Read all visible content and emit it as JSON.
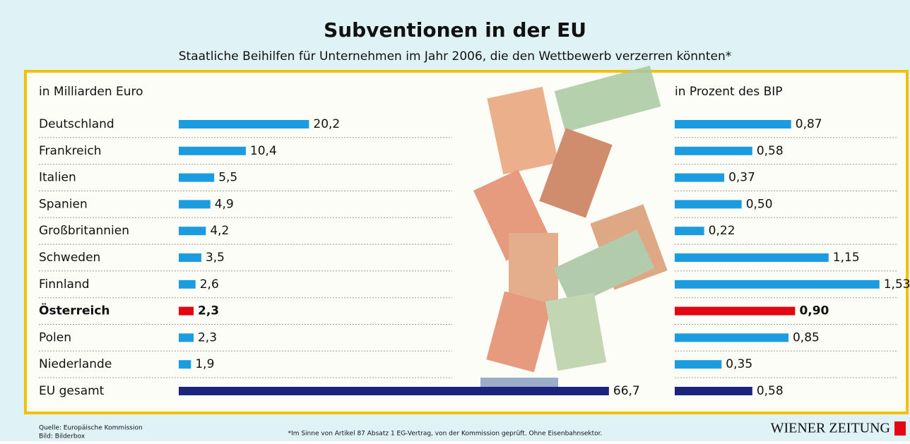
{
  "title": "Subventionen in der EU",
  "subtitle": "Staatliche Beihilfen für Unternehmen im Jahr 2006, die den Wettbewerb verzerren könnten*",
  "source": "Quelle: Europäische Kommission",
  "credit": "Bild: Bilderbox",
  "footnote": "*Im Sinne von Artikel 87 Absatz 1 EG-Vertrag, von der Kommission geprüft. Ohne Eisenbahnsektor.",
  "brand": "WIENER ZEITUNG",
  "chart_data": [
    {
      "type": "bar",
      "orientation": "horizontal",
      "title": "in Milliarden Euro",
      "categories": [
        "Deutschland",
        "Frankreich",
        "Italien",
        "Spanien",
        "Großbritannien",
        "Schweden",
        "Finnland",
        "Österreich",
        "Polen",
        "Niederlande",
        "EU gesamt"
      ],
      "values": [
        20.2,
        10.4,
        5.5,
        4.9,
        4.2,
        3.5,
        2.6,
        2.3,
        2.3,
        1.9,
        66.7
      ],
      "value_labels": [
        "20,2",
        "10,4",
        "5,5",
        "4,9",
        "4,2",
        "3,5",
        "2,6",
        "2,3",
        "2,3",
        "1,9",
        "66,7"
      ],
      "colors": [
        "#1b9be0",
        "#1b9be0",
        "#1b9be0",
        "#1b9be0",
        "#1b9be0",
        "#1b9be0",
        "#1b9be0",
        "#e30613",
        "#1b9be0",
        "#1b9be0",
        "#1a237e"
      ],
      "xlim": [
        0,
        70
      ]
    },
    {
      "type": "bar",
      "orientation": "horizontal",
      "title": "in Prozent des BIP",
      "values": [
        0.87,
        0.58,
        0.37,
        0.5,
        0.22,
        1.15,
        1.53,
        0.9,
        0.85,
        0.35,
        0.58
      ],
      "value_labels": [
        "0,87",
        "0,58",
        "0,37",
        "0,50",
        "0,22",
        "1,15",
        "1,53",
        "0,90",
        "0,85",
        "0,35",
        "0,58"
      ],
      "colors": [
        "#1b9be0",
        "#1b9be0",
        "#1b9be0",
        "#1b9be0",
        "#1b9be0",
        "#1b9be0",
        "#1b9be0",
        "#e30613",
        "#1b9be0",
        "#1b9be0",
        "#1a237e"
      ],
      "xlim": [
        0,
        1.6
      ]
    }
  ]
}
